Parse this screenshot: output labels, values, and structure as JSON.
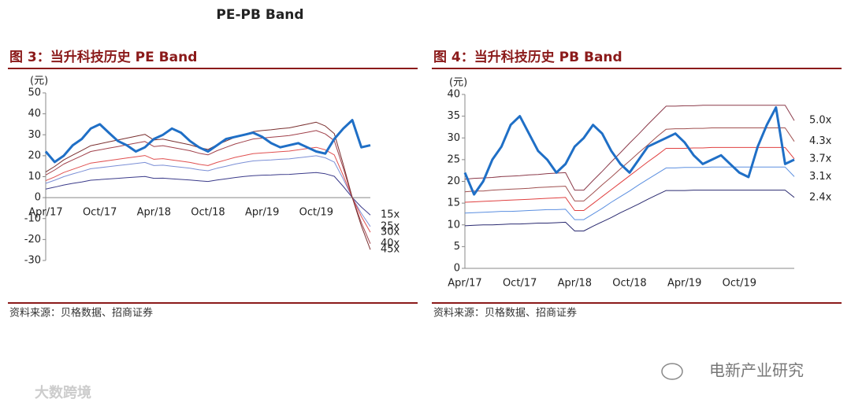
{
  "header": {
    "title": "PE-PB Band"
  },
  "chart_data": [
    {
      "type": "line",
      "title": "图 3：当升科技历史 PE Band",
      "source": "资料来源：贝格数据、招商证券",
      "y_unit": "(元)",
      "categories": [
        "Apr/17",
        null,
        null,
        null,
        null,
        null,
        "Oct/17",
        null,
        null,
        null,
        null,
        null,
        "Apr/18",
        null,
        null,
        null,
        null,
        null,
        "Oct/18",
        null,
        null,
        null,
        null,
        null,
        "Apr/19",
        null,
        null,
        null,
        null,
        null,
        "Oct/19",
        null,
        null,
        null,
        null,
        null,
        null
      ],
      "ylim": [
        -30,
        50
      ],
      "yticks": [
        -30,
        -20,
        -10,
        0,
        10,
        20,
        30,
        40,
        50
      ],
      "series": [
        {
          "name": "15x",
          "color": "#3b3b8a",
          "width": 1,
          "values": [
            4.1,
            5,
            6,
            6.8,
            7.5,
            8.3,
            8.6,
            8.9,
            9.2,
            9.5,
            9.8,
            10.1,
            9.2,
            9.3,
            9,
            8.7,
            8.4,
            8,
            7.7,
            8.4,
            9,
            9.6,
            10.1,
            10.5,
            10.7,
            10.8,
            11,
            11.1,
            11.4,
            11.7,
            12,
            11.4,
            10.2,
            5.3,
            0,
            -4.5,
            -8.3
          ]
        },
        {
          "name": "25x",
          "color": "#7b8fd6",
          "width": 1,
          "values": [
            6.8,
            8.3,
            10,
            11.3,
            12.5,
            13.8,
            14.3,
            14.8,
            15.3,
            15.8,
            16.3,
            16.8,
            15.3,
            15.5,
            15,
            14.5,
            14,
            13.3,
            12.8,
            14,
            15,
            16,
            16.8,
            17.5,
            17.8,
            18,
            18.3,
            18.5,
            19,
            19.5,
            20,
            19,
            17,
            8.8,
            0,
            -7.5,
            -13.8
          ]
        },
        {
          "name": "30x",
          "color": "#e05050",
          "width": 1,
          "values": [
            8.1,
            9.9,
            12,
            13.5,
            15,
            16.5,
            17.1,
            17.7,
            18.3,
            18.9,
            19.5,
            20.1,
            18.3,
            18.6,
            18,
            17.4,
            16.8,
            15.9,
            15.3,
            16.8,
            18,
            19.2,
            20.1,
            21,
            21.3,
            21.6,
            21.9,
            22.2,
            22.8,
            23.4,
            24,
            22.8,
            20.4,
            10.5,
            0,
            -9,
            -16.5
          ]
        },
        {
          "name": "40x",
          "color": "#a0404a",
          "width": 1,
          "values": [
            10.8,
            13.2,
            16,
            18,
            20,
            22,
            22.8,
            23.6,
            24.4,
            25.2,
            26,
            26.8,
            24.4,
            24.8,
            24,
            23.2,
            22.4,
            21.2,
            20.4,
            22.4,
            24,
            25.6,
            26.8,
            28,
            28.4,
            28.8,
            29.2,
            29.6,
            30.4,
            31.2,
            32,
            30.4,
            27.2,
            14,
            0,
            -12,
            -22
          ]
        },
        {
          "name": "45x",
          "color": "#7a3030",
          "width": 1,
          "values": [
            12.2,
            14.9,
            18,
            20.3,
            22.5,
            24.8,
            25.7,
            26.6,
            27.5,
            28.4,
            29.3,
            30.2,
            27.5,
            27.9,
            27,
            26.1,
            25.2,
            23.9,
            23,
            25.2,
            27,
            28.8,
            30.2,
            31.5,
            32,
            32.4,
            32.9,
            33.3,
            34.2,
            35.1,
            36,
            34.2,
            30.6,
            15.8,
            0,
            -13.5,
            -24.8
          ]
        },
        {
          "color": "#1f6fc6",
          "width": 3,
          "values": [
            22,
            17,
            20,
            25,
            28,
            33,
            35,
            31,
            27,
            25,
            22,
            24,
            28,
            30,
            33,
            31,
            27,
            24,
            22,
            25,
            28,
            29,
            30,
            31,
            29,
            26,
            24,
            25,
            26,
            24,
            22,
            21,
            28,
            33,
            37,
            24,
            25
          ]
        }
      ]
    },
    {
      "type": "line",
      "title": "图 4：当升科技历史 PB Band",
      "source": "资料来源：贝格数据、招商证券",
      "y_unit": "(元)",
      "categories": [
        "Apr/17",
        null,
        null,
        null,
        null,
        null,
        "Oct/17",
        null,
        null,
        null,
        null,
        null,
        "Apr/18",
        null,
        null,
        null,
        null,
        null,
        "Oct/18",
        null,
        null,
        null,
        null,
        null,
        "Apr/19",
        null,
        null,
        null,
        null,
        null,
        "Oct/19",
        null,
        null,
        null,
        null,
        null,
        null
      ],
      "ylim": [
        0,
        40
      ],
      "yticks": [
        0,
        5,
        10,
        15,
        20,
        25,
        30,
        35,
        40
      ],
      "series": [
        {
          "name": "5.0x",
          "color": "#8b3a4a",
          "width": 1,
          "values": [
            20.5,
            20.7,
            20.8,
            20.9,
            21.1,
            21.2,
            21.3,
            21.5,
            21.6,
            21.8,
            21.9,
            22,
            18,
            18,
            20.2,
            22.3,
            24.5,
            26.6,
            28.8,
            30.9,
            33.1,
            35.2,
            37.3,
            37.3,
            37.4,
            37.4,
            37.5,
            37.5,
            37.5,
            37.5,
            37.5,
            37.5,
            37.5,
            37.5,
            37.5,
            37.5,
            34
          ]
        },
        {
          "name": "4.3x",
          "color": "#a05050",
          "width": 1,
          "values": [
            17.6,
            17.8,
            17.8,
            18,
            18.1,
            18.2,
            18.3,
            18.4,
            18.6,
            18.7,
            18.8,
            18.9,
            15.5,
            15.5,
            17.3,
            19.2,
            21,
            22.9,
            24.7,
            26.6,
            28.4,
            30.3,
            32,
            32.1,
            32.1,
            32.2,
            32.2,
            32.3,
            32.3,
            32.3,
            32.3,
            32.3,
            32.3,
            32.3,
            32.3,
            32.3,
            29.2
          ]
        },
        {
          "name": "3.7x",
          "color": "#e04040",
          "width": 1,
          "values": [
            15.2,
            15.3,
            15.4,
            15.5,
            15.6,
            15.7,
            15.8,
            15.9,
            16,
            16.1,
            16.2,
            16.3,
            13.3,
            13.3,
            14.9,
            16.5,
            18.1,
            19.7,
            21.3,
            22.9,
            24.5,
            26,
            27.6,
            27.6,
            27.6,
            27.7,
            27.7,
            27.8,
            27.8,
            27.8,
            27.8,
            27.8,
            27.8,
            27.8,
            27.8,
            27.8,
            25.2
          ]
        },
        {
          "name": "3.1x",
          "color": "#5b8fe0",
          "width": 1,
          "values": [
            12.7,
            12.8,
            12.9,
            13,
            13.1,
            13.1,
            13.2,
            13.3,
            13.4,
            13.5,
            13.5,
            13.6,
            11.2,
            11.2,
            12.5,
            13.8,
            15.2,
            16.5,
            17.8,
            19.2,
            20.5,
            21.8,
            23.1,
            23.1,
            23.2,
            23.2,
            23.2,
            23.3,
            23.3,
            23.3,
            23.3,
            23.3,
            23.3,
            23.3,
            23.3,
            23.3,
            21.1
          ]
        },
        {
          "name": "2.4x",
          "color": "#2a2a70",
          "width": 1,
          "values": [
            9.8,
            9.9,
            10,
            10,
            10.1,
            10.2,
            10.2,
            10.3,
            10.4,
            10.4,
            10.5,
            10.6,
            8.6,
            8.6,
            9.7,
            10.7,
            11.7,
            12.8,
            13.8,
            14.8,
            15.9,
            16.9,
            17.9,
            17.9,
            17.9,
            18,
            18,
            18,
            18,
            18,
            18,
            18,
            18,
            18,
            18,
            18,
            16.3
          ]
        },
        {
          "color": "#1f6fc6",
          "width": 3,
          "values": [
            22,
            17,
            20,
            25,
            28,
            33,
            35,
            31,
            27,
            25,
            22,
            24,
            28,
            30,
            33,
            31,
            27,
            24,
            22,
            25,
            28,
            29,
            30,
            31,
            29,
            26,
            24,
            25,
            26,
            24,
            22,
            21,
            28,
            33,
            37,
            24,
            25
          ]
        }
      ]
    }
  ],
  "watermarks": [
    "电新产业研究",
    "大数跨境"
  ]
}
